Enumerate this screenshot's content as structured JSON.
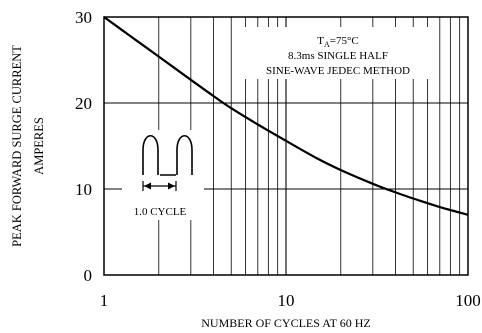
{
  "chart_data": {
    "type": "line",
    "xscale": "log",
    "xlim": [
      1,
      100
    ],
    "ylim": [
      0,
      30
    ],
    "xlabel": "NUMBER OF CYCLES AT 60 HZ",
    "ylabel": [
      "PEAK FORWARD SURGE CURRENT",
      "AMPERES"
    ],
    "x_ticks": [
      1,
      10,
      100
    ],
    "y_ticks": [
      0,
      10,
      20,
      30
    ],
    "grid": true,
    "annotation": {
      "line1_main": "T",
      "line1_sub": "A",
      "line1_rest": "=75°C",
      "line2": "8.3ms SINGLE HALF",
      "line3": "SINE-WAVE JEDEC METHOD"
    },
    "inset_label": "1.0 CYCLE",
    "series": [
      {
        "x": [
          1,
          1.5,
          2,
          3,
          4,
          5,
          7,
          10,
          15,
          20,
          30,
          40,
          50,
          70,
          100
        ],
        "values": [
          30,
          27.3,
          25.4,
          22.7,
          20.8,
          19.4,
          17.5,
          15.6,
          13.5,
          12.2,
          10.6,
          9.6,
          8.9,
          7.9,
          7.0
        ]
      }
    ]
  }
}
